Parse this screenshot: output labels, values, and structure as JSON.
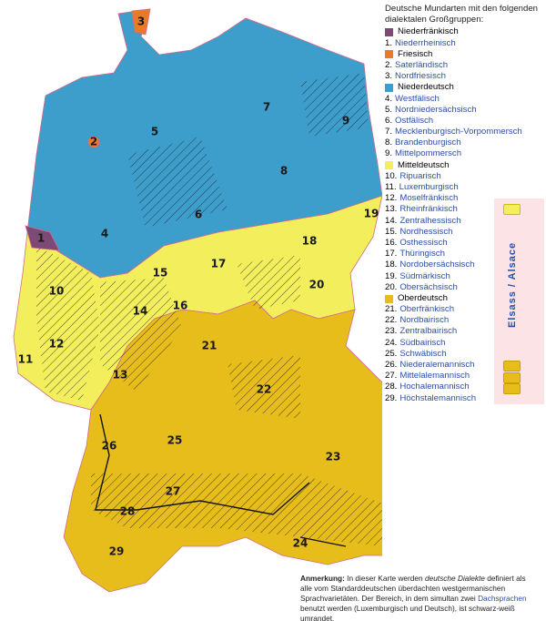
{
  "legend": {
    "title": "Deutsche Mundarten mit den folgenden dialektalen Großgruppen:",
    "items": [
      {
        "label": "Niederfränkisch",
        "swatch": "#7d4a75"
      },
      {
        "number": "1.",
        "label": "Niederrheinisch"
      },
      {
        "label": "Friesisch",
        "swatch": "#e87a2a"
      },
      {
        "number": "2.",
        "label": "Saterländisch"
      },
      {
        "number": "3.",
        "label": "Nordfriesisch"
      },
      {
        "label": "Niederdeutsch",
        "swatch": "#3d9dcb"
      },
      {
        "number": "4.",
        "label": "Westfälisch"
      },
      {
        "number": "5.",
        "label": "Nordniedersächsisch"
      },
      {
        "number": "6.",
        "label": "Ostfälisch"
      },
      {
        "number": "7.",
        "label": "Mecklenburgisch-Vorpommersch"
      },
      {
        "number": "8.",
        "label": "Brandenburgisch"
      },
      {
        "number": "9.",
        "label": "Mittelpommersch"
      },
      {
        "label": "Mitteldeutsch",
        "swatch": "#f3ef5c"
      },
      {
        "number": "10.",
        "label": "Ripuarisch"
      },
      {
        "number": "11.",
        "label": "Luxemburgisch"
      },
      {
        "number": "12.",
        "label": "Moselfränkisch"
      },
      {
        "number": "13.",
        "label": "Rheinfränkisch"
      },
      {
        "number": "14.",
        "label": "Zentralhessisch"
      },
      {
        "number": "15.",
        "label": "Nordhessisch"
      },
      {
        "number": "16.",
        "label": "Osthessisch"
      },
      {
        "number": "17.",
        "label": "Thüringisch"
      },
      {
        "number": "18.",
        "label": "Nordobersächsisch"
      },
      {
        "number": "19.",
        "label": "Südmärkisch"
      },
      {
        "number": "20.",
        "label": "Obersächsisch"
      },
      {
        "label": "Oberdeutsch",
        "swatch": "#e6bd1b"
      },
      {
        "number": "21.",
        "label": "Oberfränkisch"
      },
      {
        "number": "22.",
        "label": "Nordbairisch"
      },
      {
        "number": "23.",
        "label": "Zentralbairisch"
      },
      {
        "number": "24.",
        "label": "Südbairisch"
      },
      {
        "number": "25.",
        "label": "Schwäbisch"
      },
      {
        "number": "26.",
        "label": "Niederalemannisch"
      },
      {
        "number": "27.",
        "label": "Mittelalemannisch"
      },
      {
        "number": "28.",
        "label": "Hochalemannisch"
      },
      {
        "number": "29.",
        "label": "Höchstalemannisch"
      }
    ]
  },
  "map_labels": [
    "3",
    "2",
    "5",
    "7",
    "9",
    "8",
    "6",
    "4",
    "1",
    "19",
    "18",
    "17",
    "20",
    "15",
    "10",
    "16",
    "14",
    "12",
    "11",
    "13",
    "21",
    "22",
    "26",
    "25",
    "23",
    "27",
    "28",
    "24",
    "29"
  ],
  "side_label": "Elsass / Alsace",
  "note": [
    {
      "text": "Anmerkung:",
      "style": "bold"
    },
    {
      "text": " In dieser Karte werden "
    },
    {
      "text": "deutsche Dialekte",
      "style": "italic"
    },
    {
      "text": " definiert als alle vom Standarddeutschen überdachten westgermanischen Sprachvarietäten. Der Bereich, in dem simultan zwei "
    },
    {
      "text": "Dachsprachen",
      "style": "link"
    },
    {
      "text": " benutzt werden (Luxemburgisch und Deutsch), ist schwarz-weiß umrandet."
    }
  ]
}
